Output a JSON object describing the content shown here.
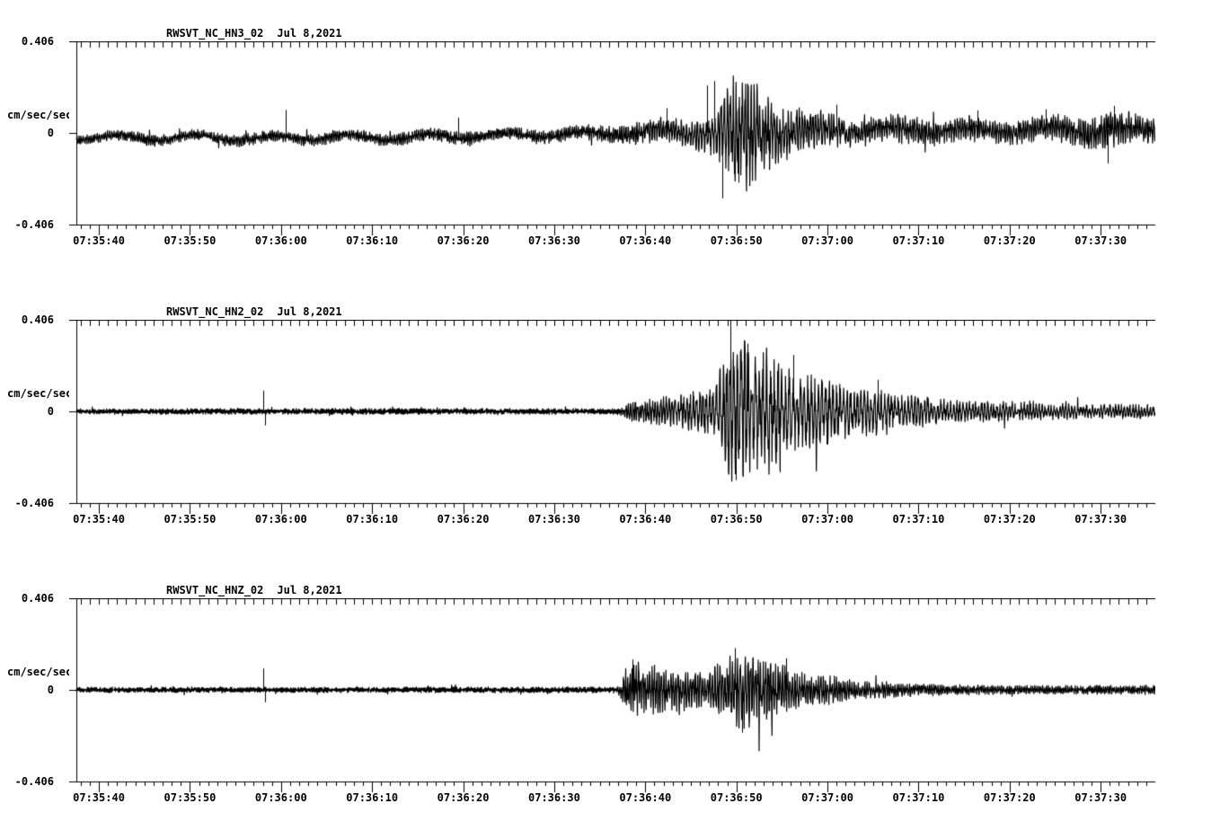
{
  "page": {
    "background": "#ffffff",
    "ink": "#000000"
  },
  "chart_data": [
    {
      "type": "line",
      "subtype": "seismogram-waveform",
      "station": "RWSVT_NC_HN3_02",
      "date": "Jul 8,2021",
      "ylabel": "cm/sec/sec",
      "y_tick_labels": {
        "max": "0.406",
        "zero": "0",
        "min": "-0.406"
      },
      "ylim": [
        -0.406,
        0.406
      ],
      "x_tick_labels": [
        "07:35:40",
        "07:35:50",
        "07:36:00",
        "07:36:10",
        "07:36:20",
        "07:36:30",
        "07:36:40",
        "07:36:50",
        "07:37:00",
        "07:37:10",
        "07:37:20",
        "07:37:30"
      ],
      "x_major_tick_interval_s": 10,
      "x_minor_tick_interval_s": 1,
      "time_start_offset_s": -2.47,
      "time_end_offset_s": 116.0,
      "grid": false,
      "baseline_wander": {
        "amp": 0.012,
        "period_s": 8.5
      },
      "mean_cm_s2": [
        [
          -2.5,
          -0.018
        ],
        [
          5,
          -0.022
        ],
        [
          12,
          -0.02
        ],
        [
          18,
          -0.025
        ],
        [
          25,
          -0.018
        ],
        [
          32,
          -0.022
        ],
        [
          40,
          -0.012
        ],
        [
          48,
          -0.008
        ],
        [
          55,
          -0.003
        ],
        [
          62,
          0.004
        ],
        [
          70,
          0.0
        ],
        [
          78,
          0.008
        ],
        [
          85,
          0.012
        ],
        [
          92,
          0.014
        ],
        [
          100,
          0.012
        ],
        [
          108,
          0.014
        ],
        [
          116,
          0.018
        ]
      ],
      "envelope_cm_s2": [
        [
          -2.5,
          0.02
        ],
        [
          5,
          0.024
        ],
        [
          10,
          0.022
        ],
        [
          15,
          0.026
        ],
        [
          20,
          0.024
        ],
        [
          25,
          0.026
        ],
        [
          30,
          0.024
        ],
        [
          35,
          0.026
        ],
        [
          40,
          0.028
        ],
        [
          45,
          0.026
        ],
        [
          50,
          0.028
        ],
        [
          55,
          0.034
        ],
        [
          58,
          0.045
        ],
        [
          61,
          0.05
        ],
        [
          64,
          0.055
        ],
        [
          66,
          0.07
        ],
        [
          67.5,
          0.09
        ],
        [
          69,
          0.17
        ],
        [
          70,
          0.24
        ],
        [
          71,
          0.26
        ],
        [
          72,
          0.2
        ],
        [
          73,
          0.17
        ],
        [
          74,
          0.13
        ],
        [
          75,
          0.12
        ],
        [
          76,
          0.1
        ],
        [
          78,
          0.085
        ],
        [
          80,
          0.07
        ],
        [
          83,
          0.06
        ],
        [
          86,
          0.055
        ],
        [
          89,
          0.065
        ],
        [
          92,
          0.05
        ],
        [
          95,
          0.052
        ],
        [
          98,
          0.048
        ],
        [
          101,
          0.05
        ],
        [
          104,
          0.055
        ],
        [
          107,
          0.06
        ],
        [
          109,
          0.075
        ],
        [
          111,
          0.085
        ],
        [
          112.5,
          0.07
        ],
        [
          114,
          0.06
        ],
        [
          116,
          0.062
        ]
      ],
      "dominant_freq_hz": [
        [
          -2.5,
          4.5
        ],
        [
          55,
          4.5
        ],
        [
          63,
          3.5
        ],
        [
          68,
          3.0
        ],
        [
          75,
          3.2
        ],
        [
          85,
          3.8
        ],
        [
          116,
          4.0
        ]
      ],
      "spikes": [
        {
          "t": 20.5,
          "v": 0.102
        },
        {
          "t": 39.5,
          "v": 0.068
        },
        {
          "t": 62.3,
          "v": 0.11
        },
        {
          "t": 66.8,
          "v": 0.21
        },
        {
          "t": 67.6,
          "v": 0.23
        },
        {
          "t": 68.5,
          "v": -0.29
        },
        {
          "t": 70.2,
          "v": -0.22
        },
        {
          "t": 81,
          "v": 0.125
        },
        {
          "t": 96.5,
          "v": 0.1
        },
        {
          "t": 104,
          "v": 0.105
        },
        {
          "t": 110.8,
          "v": -0.135
        },
        {
          "t": 111.5,
          "v": 0.12
        }
      ]
    },
    {
      "type": "line",
      "subtype": "seismogram-waveform",
      "station": "RWSVT_NC_HN2_02",
      "date": "Jul 8,2021",
      "ylabel": "cm/sec/sec",
      "y_tick_labels": {
        "max": "0.406",
        "zero": "0",
        "min": "-0.406"
      },
      "ylim": [
        -0.406,
        0.406
      ],
      "x_tick_labels": [
        "07:35:40",
        "07:35:50",
        "07:36:00",
        "07:36:10",
        "07:36:20",
        "07:36:30",
        "07:36:40",
        "07:36:50",
        "07:37:00",
        "07:37:10",
        "07:37:20",
        "07:37:30"
      ],
      "x_major_tick_interval_s": 10,
      "x_minor_tick_interval_s": 1,
      "time_start_offset_s": -2.47,
      "time_end_offset_s": 116.0,
      "grid": false,
      "baseline_wander": {
        "amp": 0.0,
        "period_s": 10
      },
      "mean_cm_s2": [
        [
          -2.5,
          0.0
        ],
        [
          116,
          0.0
        ]
      ],
      "envelope_cm_s2": [
        [
          -2.5,
          0.011
        ],
        [
          10,
          0.012
        ],
        [
          18,
          0.012
        ],
        [
          30,
          0.013
        ],
        [
          45,
          0.012
        ],
        [
          55,
          0.012
        ],
        [
          57,
          0.013
        ],
        [
          57.5,
          0.025
        ],
        [
          58.5,
          0.045
        ],
        [
          60,
          0.055
        ],
        [
          62,
          0.06
        ],
        [
          64,
          0.07
        ],
        [
          66,
          0.09
        ],
        [
          67.5,
          0.13
        ],
        [
          68.5,
          0.2
        ],
        [
          69.5,
          0.32
        ],
        [
          70.5,
          0.34
        ],
        [
          71.5,
          0.26
        ],
        [
          72.5,
          0.24
        ],
        [
          73.5,
          0.27
        ],
        [
          74.5,
          0.26
        ],
        [
          75.5,
          0.2
        ],
        [
          76.5,
          0.17
        ],
        [
          77.5,
          0.15
        ],
        [
          79,
          0.16
        ],
        [
          80.5,
          0.13
        ],
        [
          82,
          0.11
        ],
        [
          83.5,
          0.09
        ],
        [
          85,
          0.1
        ],
        [
          87,
          0.08
        ],
        [
          89,
          0.07
        ],
        [
          91,
          0.065
        ],
        [
          93,
          0.055
        ],
        [
          95,
          0.05
        ],
        [
          98,
          0.045
        ],
        [
          101,
          0.04
        ],
        [
          104,
          0.035
        ],
        [
          107,
          0.032
        ],
        [
          110,
          0.03
        ],
        [
          113,
          0.03
        ],
        [
          116,
          0.03
        ]
      ],
      "dominant_freq_hz": [
        [
          -2.5,
          7.0
        ],
        [
          56,
          7.0
        ],
        [
          58,
          4.0
        ],
        [
          62,
          3.2
        ],
        [
          68,
          2.6
        ],
        [
          75,
          2.4
        ],
        [
          82,
          2.6
        ],
        [
          90,
          2.8
        ],
        [
          100,
          3.0
        ],
        [
          116,
          3.2
        ]
      ],
      "spikes": [
        {
          "t": 18.0,
          "v": 0.092
        },
        {
          "t": 18.25,
          "v": -0.062
        },
        {
          "t": 69.3,
          "v": 0.405
        },
        {
          "t": 69.9,
          "v": -0.305
        },
        {
          "t": 71.2,
          "v": 0.3
        },
        {
          "t": 74.8,
          "v": -0.27
        },
        {
          "t": 76.2,
          "v": 0.25
        },
        {
          "t": 85.5,
          "v": 0.14
        }
      ]
    },
    {
      "type": "line",
      "subtype": "seismogram-waveform",
      "station": "RWSVT_NC_HNZ_02",
      "date": "Jul 8,2021",
      "ylabel": "cm/sec/sec",
      "y_tick_labels": {
        "max": "0.406",
        "zero": "0",
        "min": "-0.406"
      },
      "ylim": [
        -0.406,
        0.406
      ],
      "x_tick_labels": [
        "07:35:40",
        "07:35:50",
        "07:36:00",
        "07:36:10",
        "07:36:20",
        "07:36:30",
        "07:36:40",
        "07:36:50",
        "07:37:00",
        "07:37:10",
        "07:37:20",
        "07:37:30"
      ],
      "x_major_tick_interval_s": 10,
      "x_minor_tick_interval_s": 1,
      "time_start_offset_s": -2.47,
      "time_end_offset_s": 116.0,
      "grid": false,
      "baseline_wander": {
        "amp": 0.0,
        "period_s": 10
      },
      "mean_cm_s2": [
        [
          -2.5,
          0.0
        ],
        [
          116,
          0.0
        ]
      ],
      "envelope_cm_s2": [
        [
          -2.5,
          0.011
        ],
        [
          18,
          0.011
        ],
        [
          40,
          0.012
        ],
        [
          55,
          0.012
        ],
        [
          57,
          0.013
        ],
        [
          57.5,
          0.06
        ],
        [
          58,
          0.1
        ],
        [
          59,
          0.12
        ],
        [
          60,
          0.1
        ],
        [
          61,
          0.12
        ],
        [
          62,
          0.09
        ],
        [
          63,
          0.085
        ],
        [
          64,
          0.095
        ],
        [
          65,
          0.08
        ],
        [
          66,
          0.09
        ],
        [
          67,
          0.1
        ],
        [
          68,
          0.11
        ],
        [
          69,
          0.13
        ],
        [
          70,
          0.15
        ],
        [
          71,
          0.17
        ],
        [
          72,
          0.15
        ],
        [
          73,
          0.14
        ],
        [
          74,
          0.12
        ],
        [
          75,
          0.1
        ],
        [
          76,
          0.09
        ],
        [
          77,
          0.08
        ],
        [
          78,
          0.07
        ],
        [
          80,
          0.06
        ],
        [
          82,
          0.05
        ],
        [
          84,
          0.04
        ],
        [
          86,
          0.035
        ],
        [
          88,
          0.03
        ],
        [
          91,
          0.025
        ],
        [
          94,
          0.022
        ],
        [
          98,
          0.02
        ],
        [
          102,
          0.018
        ],
        [
          106,
          0.018
        ],
        [
          110,
          0.02
        ],
        [
          113,
          0.019
        ],
        [
          116,
          0.02
        ]
      ],
      "dominant_freq_hz": [
        [
          -2.5,
          7.0
        ],
        [
          56,
          7.0
        ],
        [
          57.5,
          4.5
        ],
        [
          60,
          4.0
        ],
        [
          70,
          3.5
        ],
        [
          80,
          4.0
        ],
        [
          90,
          4.5
        ],
        [
          116,
          5.0
        ]
      ],
      "spikes": [
        {
          "t": 18.0,
          "v": 0.095
        },
        {
          "t": 18.2,
          "v": -0.055
        },
        {
          "t": 58.6,
          "v": 0.135
        },
        {
          "t": 69.8,
          "v": 0.185
        },
        {
          "t": 70.6,
          "v": -0.19
        },
        {
          "t": 75.5,
          "v": 0.14
        }
      ]
    }
  ]
}
